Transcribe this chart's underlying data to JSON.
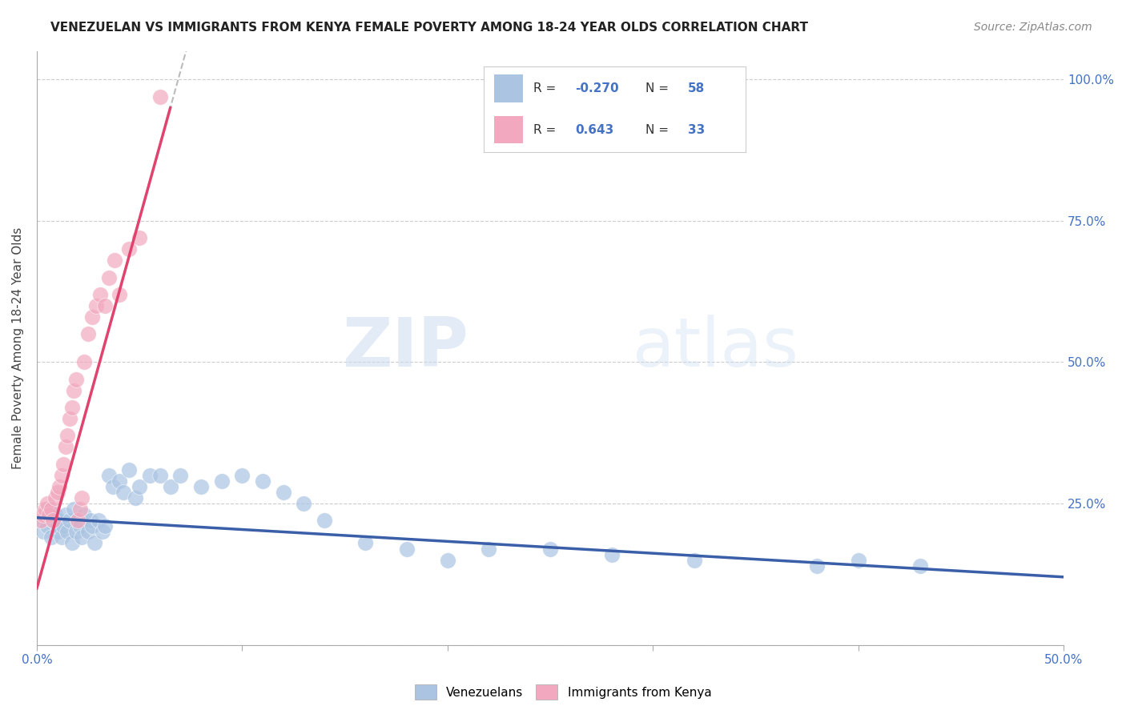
{
  "title": "VENEZUELAN VS IMMIGRANTS FROM KENYA FEMALE POVERTY AMONG 18-24 YEAR OLDS CORRELATION CHART",
  "source": "Source: ZipAtlas.com",
  "ylabel": "Female Poverty Among 18-24 Year Olds",
  "watermark_zip": "ZIP",
  "watermark_atlas": "atlas",
  "xlim": [
    0.0,
    0.5
  ],
  "ylim": [
    0.0,
    1.05
  ],
  "yticks": [
    0.0,
    0.25,
    0.5,
    0.75,
    1.0
  ],
  "ytick_labels_right": [
    "",
    "25.0%",
    "50.0%",
    "75.0%",
    "100.0%"
  ],
  "xtick_labels": [
    "0.0%",
    "",
    "",
    "",
    "",
    "50.0%"
  ],
  "venezuelan_color": "#aac4e2",
  "kenya_color": "#f2a8be",
  "venezuelan_line_color": "#3a5fa8",
  "kenya_line_color": "#e0446e",
  "R_venezuelan": -0.27,
  "N_venezuelan": 58,
  "R_kenya": 0.643,
  "N_kenya": 33,
  "venezuelan_scatter_x": [
    0.002,
    0.003,
    0.004,
    0.005,
    0.006,
    0.007,
    0.008,
    0.009,
    0.01,
    0.01,
    0.011,
    0.012,
    0.013,
    0.014,
    0.015,
    0.016,
    0.017,
    0.018,
    0.019,
    0.02,
    0.021,
    0.022,
    0.023,
    0.025,
    0.026,
    0.027,
    0.028,
    0.03,
    0.032,
    0.033,
    0.035,
    0.037,
    0.04,
    0.042,
    0.045,
    0.048,
    0.05,
    0.055,
    0.06,
    0.065,
    0.07,
    0.08,
    0.09,
    0.1,
    0.11,
    0.12,
    0.13,
    0.14,
    0.16,
    0.18,
    0.2,
    0.22,
    0.25,
    0.28,
    0.32,
    0.38,
    0.4,
    0.43
  ],
  "venezuelan_scatter_y": [
    0.22,
    0.2,
    0.23,
    0.21,
    0.24,
    0.19,
    0.22,
    0.23,
    0.2,
    0.21,
    0.22,
    0.19,
    0.21,
    0.23,
    0.2,
    0.22,
    0.18,
    0.24,
    0.2,
    0.22,
    0.21,
    0.19,
    0.23,
    0.2,
    0.22,
    0.21,
    0.18,
    0.22,
    0.2,
    0.21,
    0.3,
    0.28,
    0.29,
    0.27,
    0.31,
    0.26,
    0.28,
    0.3,
    0.3,
    0.28,
    0.3,
    0.28,
    0.29,
    0.3,
    0.29,
    0.27,
    0.25,
    0.22,
    0.18,
    0.17,
    0.15,
    0.17,
    0.17,
    0.16,
    0.15,
    0.14,
    0.15,
    0.14
  ],
  "kenya_scatter_x": [
    0.002,
    0.003,
    0.004,
    0.005,
    0.006,
    0.007,
    0.008,
    0.009,
    0.01,
    0.011,
    0.012,
    0.013,
    0.014,
    0.015,
    0.016,
    0.017,
    0.018,
    0.019,
    0.02,
    0.021,
    0.022,
    0.023,
    0.025,
    0.027,
    0.029,
    0.031,
    0.033,
    0.035,
    0.038,
    0.04,
    0.045,
    0.05,
    0.06
  ],
  "kenya_scatter_y": [
    0.22,
    0.23,
    0.24,
    0.25,
    0.23,
    0.24,
    0.22,
    0.26,
    0.27,
    0.28,
    0.3,
    0.32,
    0.35,
    0.37,
    0.4,
    0.42,
    0.45,
    0.47,
    0.22,
    0.24,
    0.26,
    0.5,
    0.55,
    0.58,
    0.6,
    0.62,
    0.6,
    0.65,
    0.68,
    0.62,
    0.7,
    0.72,
    0.97
  ],
  "background_color": "#ffffff",
  "grid_color": "#cccccc",
  "title_fontsize": 11,
  "source_fontsize": 10,
  "axis_label_fontsize": 11,
  "tick_fontsize": 11,
  "legend_fontsize": 11
}
